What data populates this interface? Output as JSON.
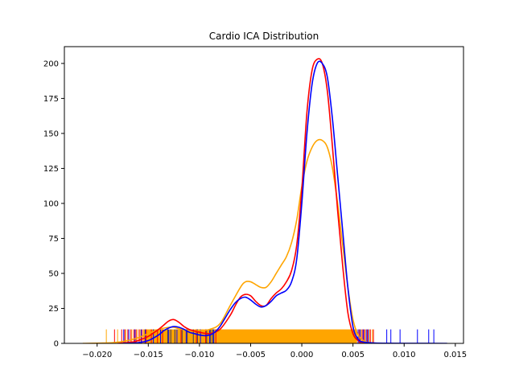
{
  "chart_data": {
    "type": "line",
    "title": "Cardio ICA Distribution",
    "xlabel": "",
    "ylabel": "",
    "xlim": [
      -0.0232,
      0.0158
    ],
    "ylim": [
      0,
      212
    ],
    "x_ticks": [
      -0.02,
      -0.015,
      -0.01,
      -0.005,
      0.0,
      0.005,
      0.01,
      0.015
    ],
    "x_tick_labels": [
      "−0.020",
      "−0.015",
      "−0.010",
      "−0.005",
      "0.000",
      "0.005",
      "0.010",
      "0.015"
    ],
    "y_ticks": [
      0,
      25,
      50,
      75,
      100,
      125,
      150,
      175,
      200
    ],
    "y_tick_labels": [
      "0",
      "25",
      "50",
      "75",
      "100",
      "125",
      "150",
      "175",
      "200"
    ],
    "grid": false,
    "legend": "none",
    "series": [
      {
        "color": "#ffa500",
        "x": [
          -0.0214,
          -0.0185,
          -0.017,
          -0.016,
          -0.015,
          -0.014,
          -0.013,
          -0.0125,
          -0.012,
          -0.011,
          -0.01,
          -0.009,
          -0.008,
          -0.007,
          -0.006,
          -0.0055,
          -0.005,
          -0.0045,
          -0.004,
          -0.0035,
          -0.003,
          -0.0025,
          -0.002,
          -0.0015,
          -0.001,
          -0.0005,
          0.0,
          0.0005,
          0.001,
          0.0015,
          0.002,
          0.0025,
          0.003,
          0.0035,
          0.004,
          0.0045,
          0.005,
          0.0055,
          0.006,
          0.0065,
          0.0072
        ],
        "y": [
          0,
          0.5,
          2,
          4,
          7,
          10,
          11.5,
          11.5,
          10.5,
          9,
          9,
          10,
          14,
          27,
          40,
          44,
          44,
          42,
          40,
          40,
          44,
          50,
          56,
          62,
          72,
          88,
          112,
          130,
          140,
          145,
          145,
          140,
          125,
          100,
          70,
          40,
          17,
          6,
          2,
          0.5,
          0
        ]
      },
      {
        "color": "#ff0000",
        "x": [
          -0.018,
          -0.0165,
          -0.016,
          -0.015,
          -0.014,
          -0.0135,
          -0.013,
          -0.0125,
          -0.012,
          -0.0115,
          -0.011,
          -0.01,
          -0.009,
          -0.008,
          -0.007,
          -0.0065,
          -0.006,
          -0.0055,
          -0.005,
          -0.0045,
          -0.004,
          -0.0035,
          -0.003,
          -0.0025,
          -0.002,
          -0.0015,
          -0.001,
          -0.0005,
          0.0,
          0.0005,
          0.001,
          0.0015,
          0.002,
          0.0025,
          0.003,
          0.0035,
          0.004,
          0.0045,
          0.005,
          0.0055,
          0.006,
          0.007
        ],
        "y": [
          0,
          1,
          2,
          5,
          10,
          13,
          16,
          17,
          15,
          12,
          10,
          8,
          7,
          10,
          20,
          27,
          33,
          35,
          34,
          30,
          27,
          27,
          32,
          36,
          39,
          44,
          52,
          70,
          110,
          165,
          195,
          203,
          200,
          180,
          140,
          95,
          55,
          22,
          7,
          2,
          0.5,
          0
        ]
      },
      {
        "color": "#0000ff",
        "x": [
          -0.0175,
          -0.016,
          -0.015,
          -0.014,
          -0.0135,
          -0.013,
          -0.0125,
          -0.012,
          -0.0115,
          -0.011,
          -0.0105,
          -0.01,
          -0.0095,
          -0.009,
          -0.0085,
          -0.008,
          -0.0075,
          -0.007,
          -0.0065,
          -0.006,
          -0.0055,
          -0.005,
          -0.0045,
          -0.004,
          -0.0035,
          -0.003,
          -0.0025,
          -0.002,
          -0.0015,
          -0.001,
          -0.0005,
          0.0,
          0.0005,
          0.001,
          0.0015,
          0.002,
          0.0025,
          0.003,
          0.0035,
          0.004,
          0.0045,
          0.005,
          0.0055,
          0.006,
          0.007,
          0.008,
          0.01,
          0.0142
        ],
        "y": [
          0,
          0.5,
          2,
          6,
          9,
          11,
          12,
          11.5,
          10,
          8,
          7,
          6,
          5.5,
          6,
          8,
          12,
          18,
          24,
          29,
          32,
          33,
          31,
          28,
          26,
          27,
          30,
          34,
          36,
          38,
          44,
          60,
          100,
          150,
          185,
          200,
          200,
          190,
          160,
          120,
          80,
          40,
          12,
          3,
          1,
          0.3,
          0.1,
          0.05,
          0
        ]
      }
    ],
    "rug_height": 10,
    "rug_orange_band": [
      -0.0155,
      0.0054
    ],
    "rug": [
      {
        "color": "#ffa500",
        "x": [
          -0.0191,
          -0.018,
          -0.0172,
          -0.0166,
          -0.0161,
          -0.0158,
          -0.0148,
          -0.0137,
          -0.0126,
          -0.0119,
          -0.0108,
          -0.0097,
          -0.0088,
          0.0058,
          0.0062,
          0.0066,
          0.0069
        ]
      },
      {
        "color": "#ff0000",
        "x": [
          -0.0183,
          -0.0176,
          -0.0173,
          -0.017,
          -0.0167,
          -0.0164,
          -0.0162,
          -0.0159,
          -0.0156,
          -0.0152,
          -0.0147,
          -0.0141,
          -0.0136,
          -0.0118,
          -0.0103,
          -0.0094,
          -0.0084,
          0.0056,
          0.0059,
          0.0061,
          0.0064,
          0.0067,
          0.007
        ]
      },
      {
        "color": "#0000ff",
        "x": [
          -0.0174,
          -0.0169,
          -0.0163,
          -0.0157,
          -0.0153,
          -0.0145,
          -0.0138,
          -0.013,
          -0.0122,
          -0.0113,
          -0.0099,
          -0.009,
          -0.0086,
          0.0055,
          0.0057,
          0.006,
          0.0063,
          0.0065,
          0.0083,
          0.0087,
          0.0096,
          0.0113,
          0.0124,
          0.0129
        ]
      },
      {
        "color": "#333366",
        "x": [
          -0.0131,
          -0.0128,
          -0.0124,
          -0.0117,
          -0.0112,
          -0.0106,
          -0.0102,
          -0.0093,
          -0.0089,
          -0.0087
        ]
      }
    ]
  }
}
